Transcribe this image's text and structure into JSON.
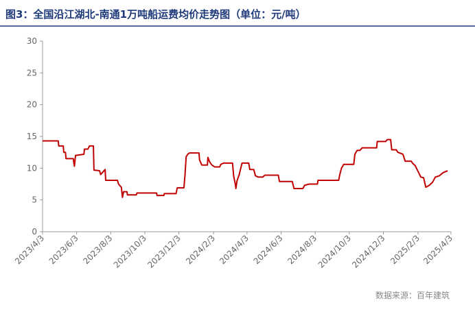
{
  "chart_data": {
    "type": "line",
    "title": "图3：全国沿江湖北-南通1万吨船运费均价走势图（单位：元/吨）",
    "source": "数据来源：百年建筑",
    "x": [
      "2023/4/3",
      "2023/5/1",
      "2023/5/2",
      "2023/5/10",
      "2023/5/11",
      "2023/5/14",
      "2023/5/15",
      "2023/5/28",
      "2023/5/30",
      "2023/6/1",
      "2023/6/16",
      "2023/6/17",
      "2023/6/23",
      "2023/6/26",
      "2023/7/3",
      "2023/7/4",
      "2023/7/14",
      "2023/7/16",
      "2023/7/24",
      "2023/7/25",
      "2023/8/15",
      "2023/8/17",
      "2023/8/22",
      "2023/8/24",
      "2023/8/26",
      "2023/9/1",
      "2023/9/2",
      "2023/9/18",
      "2023/9/19",
      "2023/10/24",
      "2023/10/25",
      "2023/11/6",
      "2023/11/7",
      "2023/11/28",
      "2023/11/30",
      "2023/12/12",
      "2023/12/14",
      "2023/12/16",
      "2023/12/19",
      "2023/12/22",
      "2024/1/8",
      "2024/1/9",
      "2024/1/13",
      "2024/1/23",
      "2024/1/24",
      "2024/1/27",
      "2024/1/31",
      "2024/2/5",
      "2024/2/14",
      "2024/2/16",
      "2024/2/21",
      "2024/3/8",
      "2024/3/10",
      "2024/3/13",
      "2024/3/14",
      "2024/3/16",
      "2024/3/20",
      "2024/3/25",
      "2024/4/6",
      "2024/4/8",
      "2024/4/15",
      "2024/4/18",
      "2024/4/23",
      "2024/5/1",
      "2024/5/5",
      "2024/5/29",
      "2024/5/31",
      "2024/6/23",
      "2024/6/26",
      "2024/7/12",
      "2024/7/15",
      "2024/7/23",
      "2024/8/7",
      "2024/8/8",
      "2024/9/14",
      "2024/9/16",
      "2024/9/19",
      "2024/9/23",
      "2024/10/11",
      "2024/10/13",
      "2024/10/17",
      "2024/10/22",
      "2024/10/26",
      "2024/11/21",
      "2024/11/22",
      "2024/12/7",
      "2024/12/10",
      "2024/12/16",
      "2024/12/18",
      "2024/12/26",
      "2024/12/29",
      "2025/1/7",
      "2025/1/11",
      "2025/1/22",
      "2025/1/24",
      "2025/1/29",
      "2025/2/3",
      "2025/2/8",
      "2025/2/13",
      "2025/2/17",
      "2025/2/23",
      "2025/3/1",
      "2025/3/6",
      "2025/3/13",
      "2025/3/20",
      "2025/3/28"
    ],
    "series": [
      {
        "name": "运费均价",
        "color": "#c00000",
        "values": [
          14.3,
          14.3,
          13.5,
          13.5,
          12.5,
          12.5,
          11.5,
          11.5,
          10.3,
          12.0,
          12.2,
          13.0,
          13.0,
          13.5,
          13.5,
          9.7,
          9.6,
          9.0,
          9.8,
          8.1,
          8.1,
          7.5,
          7.0,
          5.4,
          6.3,
          6.3,
          5.8,
          5.8,
          6.1,
          6.1,
          5.7,
          5.7,
          6.0,
          6.0,
          6.9,
          6.9,
          9.0,
          11.8,
          12.2,
          12.4,
          12.4,
          11.3,
          10.5,
          10.5,
          11.7,
          11.0,
          10.5,
          10.2,
          10.2,
          10.6,
          10.8,
          10.8,
          8.8,
          7.5,
          6.8,
          8.0,
          9.0,
          10.8,
          10.8,
          9.8,
          9.8,
          8.8,
          8.6,
          8.6,
          8.9,
          8.9,
          7.9,
          7.9,
          6.8,
          6.8,
          7.3,
          7.5,
          7.5,
          8.1,
          8.1,
          9.0,
          10.0,
          10.6,
          10.6,
          12.2,
          12.8,
          12.8,
          13.2,
          13.2,
          14.2,
          14.2,
          14.5,
          14.5,
          12.9,
          12.9,
          12.5,
          12.2,
          11.1,
          11.1,
          10.8,
          10.4,
          9.5,
          8.6,
          8.5,
          7.0,
          7.3,
          7.8,
          8.6,
          8.8,
          9.3,
          9.6
        ]
      }
    ],
    "xlim": [
      "2023/4/3",
      "2025/4/3"
    ],
    "xticks": [
      "2023/4/3",
      "2023/6/3",
      "2023/8/3",
      "2023/10/3",
      "2023/12/3",
      "2024/2/3",
      "2024/4/3",
      "2024/6/3",
      "2024/8/3",
      "2024/10/3",
      "2024/12/3",
      "2025/2/3",
      "2025/4/3"
    ],
    "ylim": [
      0,
      30
    ],
    "yticks": [
      0,
      5,
      10,
      15,
      20,
      25,
      30
    ],
    "grid": false
  }
}
